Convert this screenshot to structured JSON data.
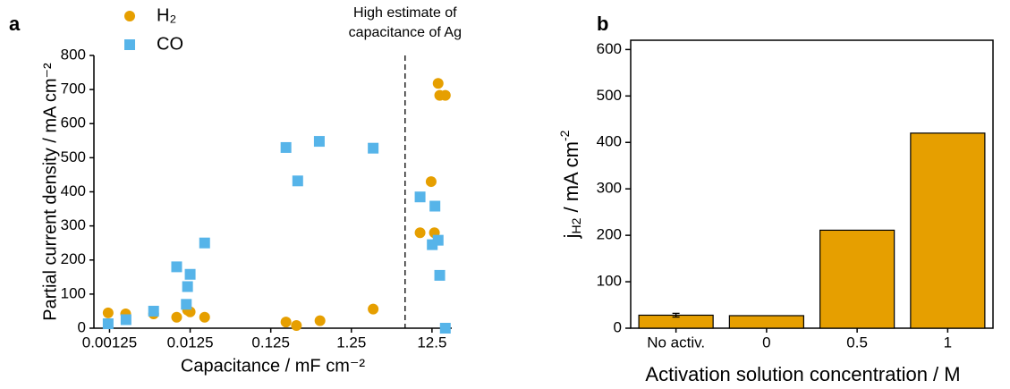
{
  "chart_data": [
    {
      "type": "scatter",
      "panel_label": "a",
      "xlabel": "Capacitance / mF cm⁻²",
      "ylabel": "Partial current density / mA cm⁻²",
      "xscale": "log",
      "xlim": [
        0.0008,
        22
      ],
      "ylim": [
        0,
        800
      ],
      "xticks": [
        0.00125,
        0.0125,
        0.125,
        1.25,
        12.5
      ],
      "yticks": [
        0,
        100,
        200,
        300,
        400,
        500,
        600,
        700,
        800
      ],
      "vline": {
        "x": 5.8,
        "annotation": [
          "High estimate of",
          "capacitance of Ag"
        ]
      },
      "series": [
        {
          "name": "H₂",
          "color": "#e69f00",
          "marker": "circle",
          "x": [
            0.0012,
            0.00198,
            0.0044,
            0.0085,
            0.0116,
            0.0125,
            0.0189,
            0.193,
            0.26,
            0.51,
            2.33,
            8.9,
            12.2,
            13.4,
            14.9,
            15.6,
            18.3
          ],
          "values": [
            45,
            42,
            42,
            32,
            53,
            48,
            32,
            18,
            8,
            22,
            56,
            280,
            430,
            280,
            718,
            683,
            683
          ]
        },
        {
          "name": "CO",
          "color": "#56b4e9",
          "marker": "square",
          "x": [
            0.0012,
            0.002,
            0.0044,
            0.0085,
            0.0116,
            0.0125,
            0.0112,
            0.0189,
            0.193,
            0.27,
            0.5,
            2.33,
            8.9,
            12.6,
            13.6,
            14.9,
            15.6,
            18.3
          ],
          "values": [
            13,
            25,
            50,
            180,
            122,
            158,
            70,
            250,
            530,
            432,
            548,
            528,
            385,
            245,
            358,
            258,
            155,
            0
          ]
        }
      ]
    },
    {
      "type": "bar",
      "panel_label": "b",
      "xlabel": "Activation solution concentration / M",
      "ylabel": {
        "main": "j",
        "sub": "H2",
        "unit": " / mA cm",
        "sup": "-2"
      },
      "categories": [
        "No activ.",
        "0",
        "0.5",
        "1"
      ],
      "values": [
        28,
        27,
        211,
        420
      ],
      "errors": [
        4,
        null,
        null,
        null
      ],
      "color": "#e69f00",
      "ylim": [
        0,
        620
      ],
      "yticks": [
        0,
        100,
        200,
        300,
        400,
        500,
        600
      ]
    }
  ]
}
